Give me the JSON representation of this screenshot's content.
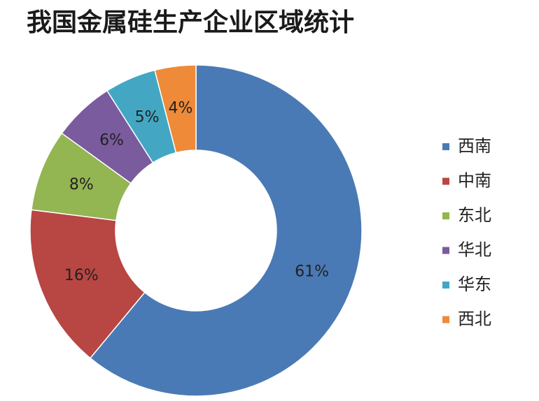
{
  "chart_data": {
    "type": "pie",
    "title": "我国金属硅生产企业区域统计",
    "categories": [
      "西南",
      "中南",
      "东北",
      "华北",
      "华东",
      "西北"
    ],
    "values": [
      61,
      16,
      8,
      6,
      5,
      4
    ],
    "value_labels": [
      "61%",
      "16%",
      "8%",
      "6%",
      "5%",
      "4%"
    ],
    "colors": [
      "#4a7ab5",
      "#b84643",
      "#93b552",
      "#7a5b9e",
      "#43a7c4",
      "#ee8a38"
    ],
    "donut": true,
    "legend": "right"
  }
}
